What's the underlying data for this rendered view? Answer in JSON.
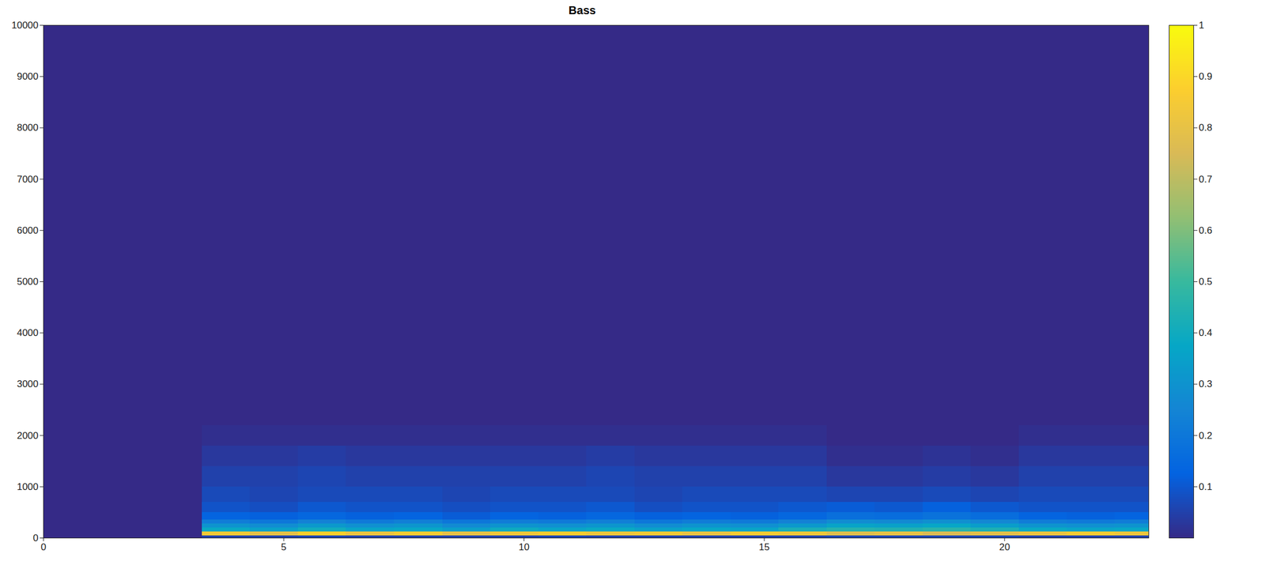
{
  "chart_data": {
    "type": "heatmap",
    "title": "Bass",
    "x_edges": [
      0,
      3.3,
      4.3,
      5.3,
      6.3,
      7.3,
      8.3,
      9.3,
      10.3,
      11.3,
      12.3,
      13.3,
      14.3,
      15.3,
      16.3,
      17.3,
      18.3,
      19.3,
      20.3,
      21.3,
      22.3,
      23
    ],
    "y_edges": [
      0,
      40,
      120,
      200,
      280,
      360,
      500,
      700,
      1000,
      1400,
      1800,
      2200,
      10000
    ],
    "values": [
      [
        0,
        0.05,
        0.05,
        0.06,
        0.05,
        0.05,
        0.05,
        0.05,
        0.06,
        0.05,
        0.05,
        0.05,
        0.05,
        0.05,
        0.06,
        0.06,
        0.06,
        0.06,
        0.05,
        0.05,
        0.05
      ],
      [
        0,
        0.85,
        0.8,
        0.88,
        0.82,
        0.86,
        0.8,
        0.84,
        0.87,
        0.83,
        0.85,
        0.81,
        0.86,
        0.84,
        0.78,
        0.8,
        0.76,
        0.79,
        0.82,
        0.86,
        0.83
      ],
      [
        0,
        0.38,
        0.35,
        0.4,
        0.36,
        0.37,
        0.34,
        0.39,
        0.36,
        0.38,
        0.35,
        0.37,
        0.36,
        0.42,
        0.45,
        0.44,
        0.46,
        0.43,
        0.38,
        0.36,
        0.37
      ],
      [
        0,
        0.3,
        0.28,
        0.32,
        0.29,
        0.31,
        0.27,
        0.3,
        0.29,
        0.31,
        0.28,
        0.3,
        0.29,
        0.32,
        0.36,
        0.35,
        0.37,
        0.34,
        0.3,
        0.29,
        0.3
      ],
      [
        0,
        0.22,
        0.2,
        0.24,
        0.21,
        0.23,
        0.2,
        0.22,
        0.21,
        0.23,
        0.2,
        0.22,
        0.21,
        0.24,
        0.28,
        0.27,
        0.29,
        0.26,
        0.22,
        0.21,
        0.22
      ],
      [
        0,
        0.13,
        0.12,
        0.14,
        0.12,
        0.13,
        0.11,
        0.13,
        0.12,
        0.14,
        0.12,
        0.13,
        0.12,
        0.14,
        0.17,
        0.16,
        0.18,
        0.16,
        0.13,
        0.12,
        0.13
      ],
      [
        0,
        0.09,
        0.08,
        0.1,
        0.09,
        0.09,
        0.08,
        0.09,
        0.09,
        0.1,
        0.08,
        0.09,
        0.09,
        0.1,
        0.11,
        0.1,
        0.12,
        0.1,
        0.09,
        0.09,
        0.09
      ],
      [
        0,
        0.07,
        0.06,
        0.07,
        0.07,
        0.07,
        0.06,
        0.07,
        0.07,
        0.07,
        0.06,
        0.07,
        0.07,
        0.07,
        0.06,
        0.06,
        0.07,
        0.06,
        0.07,
        0.07,
        0.07
      ],
      [
        0,
        0.05,
        0.05,
        0.06,
        0.05,
        0.05,
        0.05,
        0.05,
        0.05,
        0.06,
        0.05,
        0.05,
        0.05,
        0.05,
        0.03,
        0.03,
        0.04,
        0.03,
        0.05,
        0.05,
        0.05
      ],
      [
        0,
        0.03,
        0.03,
        0.04,
        0.03,
        0.03,
        0.03,
        0.03,
        0.03,
        0.04,
        0.03,
        0.03,
        0.03,
        0.03,
        0.01,
        0.01,
        0.02,
        0.01,
        0.03,
        0.03,
        0.03
      ],
      [
        0,
        0.01,
        0.01,
        0.01,
        0.01,
        0.01,
        0.01,
        0.01,
        0.01,
        0.01,
        0.01,
        0.01,
        0.01,
        0.01,
        0,
        0,
        0,
        0,
        0.01,
        0.01,
        0.01
      ],
      [
        0,
        0,
        0,
        0,
        0,
        0,
        0,
        0,
        0,
        0,
        0,
        0,
        0,
        0,
        0,
        0,
        0,
        0,
        0,
        0,
        0
      ]
    ],
    "xlim": [
      0,
      23
    ],
    "xticks": [
      0,
      5,
      10,
      15,
      20
    ],
    "ylim": [
      0,
      10000
    ],
    "yticks": [
      0,
      1000,
      2000,
      3000,
      4000,
      5000,
      6000,
      7000,
      8000,
      9000,
      10000
    ],
    "colorbar": {
      "range": [
        0,
        1
      ],
      "ticks": [
        0.1,
        0.2,
        0.3,
        0.4,
        0.5,
        0.6,
        0.7,
        0.8,
        0.9,
        1
      ]
    }
  }
}
